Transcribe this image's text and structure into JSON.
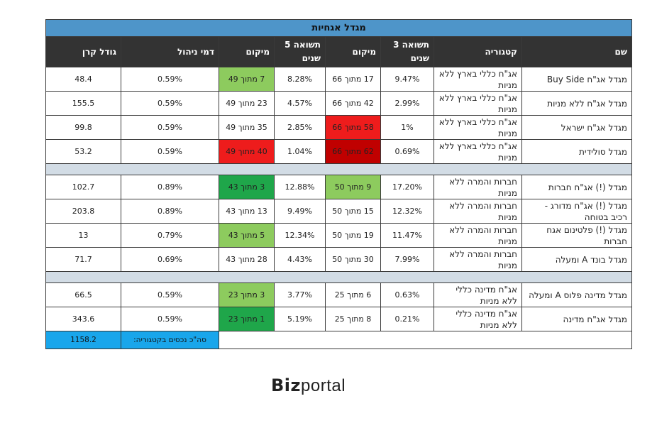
{
  "table": {
    "title": "מגדל אגחיות",
    "headers": {
      "name": "שם",
      "category": "קטגוריה",
      "return3": "תשואה 3 שנים",
      "rank3": "מיקום",
      "return5": "תשואה 5 שנים",
      "rank5": "מיקום",
      "fee": "דמי ניהול",
      "size": "גודל קרן"
    },
    "groups": [
      [
        {
          "name": "מגדל אג\"ח Buy Side",
          "category": "אג\"ח כללי בארץ ללא מניות",
          "return3": "9.47%",
          "rank3": "17 מתוך 66",
          "rank3_color": "",
          "return5": "8.28%",
          "rank5": "7 מתוך 49",
          "rank5_color": "#8dcb5e",
          "fee": "0.59%",
          "size": "48.4"
        },
        {
          "name": "מגדל אג\"ח ללא מניות",
          "category": "אג\"ח כללי בארץ ללא מניות",
          "return3": "2.99%",
          "rank3": "42 מתוך 66",
          "rank3_color": "",
          "return5": "4.57%",
          "rank5": "23 מתוך 49",
          "rank5_color": "",
          "fee": "0.59%",
          "size": "155.5"
        },
        {
          "name": "מגדל אג\"ח ישראל",
          "category": "אג\"ח כללי בארץ ללא מניות",
          "return3": "1%",
          "rank3": "58 מתוך 66",
          "rank3_color": "#ee1c1c",
          "return5": "2.85%",
          "rank5": "35 מתוך 49",
          "rank5_color": "",
          "fee": "0.59%",
          "size": "99.8"
        },
        {
          "name": "מגדל סולידית",
          "category": "אג\"ח כללי בארץ ללא מניות",
          "return3": "0.69%",
          "rank3": "62 מתוך 66",
          "rank3_color": "#c00000",
          "return5": "1.04%",
          "rank5": "40 מתוך 49",
          "rank5_color": "#ee1c1c",
          "fee": "0.59%",
          "size": "53.2"
        }
      ],
      [
        {
          "name": "מגדל (!) אג\"ח חברות",
          "category": "חברות והמרה ללא מניות",
          "return3": "17.20%",
          "rank3": "9 מתוך 50",
          "rank3_color": "#8dcb5e",
          "return5": "12.88%",
          "rank5": "3 מתוך 43",
          "rank5_color": "#1fa64a",
          "fee": "0.89%",
          "size": "102.7"
        },
        {
          "name": "מגדל (!) אג\"ח מדורג - רכיב בטוחה",
          "category": "חברות והמרה ללא מניות",
          "return3": "12.32%",
          "rank3": "15 מתוך 50",
          "rank3_color": "",
          "return5": "9.49%",
          "rank5": "13 מתוך 43",
          "rank5_color": "",
          "fee": "0.89%",
          "size": "203.8"
        },
        {
          "name": "מגדל (!) פלטינום אגח חברות",
          "category": "חברות והמרה ללא מניות",
          "return3": "11.47%",
          "rank3": "19 מתוך 50",
          "rank3_color": "",
          "return5": "12.34%",
          "rank5": "5 מתוך 43",
          "rank5_color": "#8dcb5e",
          "fee": "0.79%",
          "size": "13"
        },
        {
          "name": "מגדל בונד A ומעלה",
          "category": "חברות והמרה ללא מניות",
          "return3": "7.99%",
          "rank3": "30 מתוך 50",
          "rank3_color": "",
          "return5": "4.43%",
          "rank5": "28 מתוך 43",
          "rank5_color": "",
          "fee": "0.69%",
          "size": "71.7"
        }
      ],
      [
        {
          "name": "מגדל מדינה פלוס A ומעלה",
          "category": "אג\"ח מדינה כללי ללא מניות",
          "return3": "0.63%",
          "rank3": "6 מתוך 25",
          "rank3_color": "",
          "return5": "3.77%",
          "rank5": "3 מתוך 23",
          "rank5_color": "#8dcb5e",
          "fee": "0.59%",
          "size": "66.5"
        },
        {
          "name": "מגדל אג\"ח מדינה",
          "category": "אג\"ח מדינה כללי ללא מניות",
          "return3": "0.21%",
          "rank3": "8 מתוך 25",
          "rank3_color": "",
          "return5": "5.19%",
          "rank5": "1 מתוך 23",
          "rank5_color": "#1fa64a",
          "fee": "0.59%",
          "size": "343.6"
        }
      ]
    ],
    "total_label": "סה\"כ נכסים בקטגוריה:",
    "total_value": "1158.2"
  },
  "logo": {
    "bold": "Biz",
    "light": "portal"
  }
}
